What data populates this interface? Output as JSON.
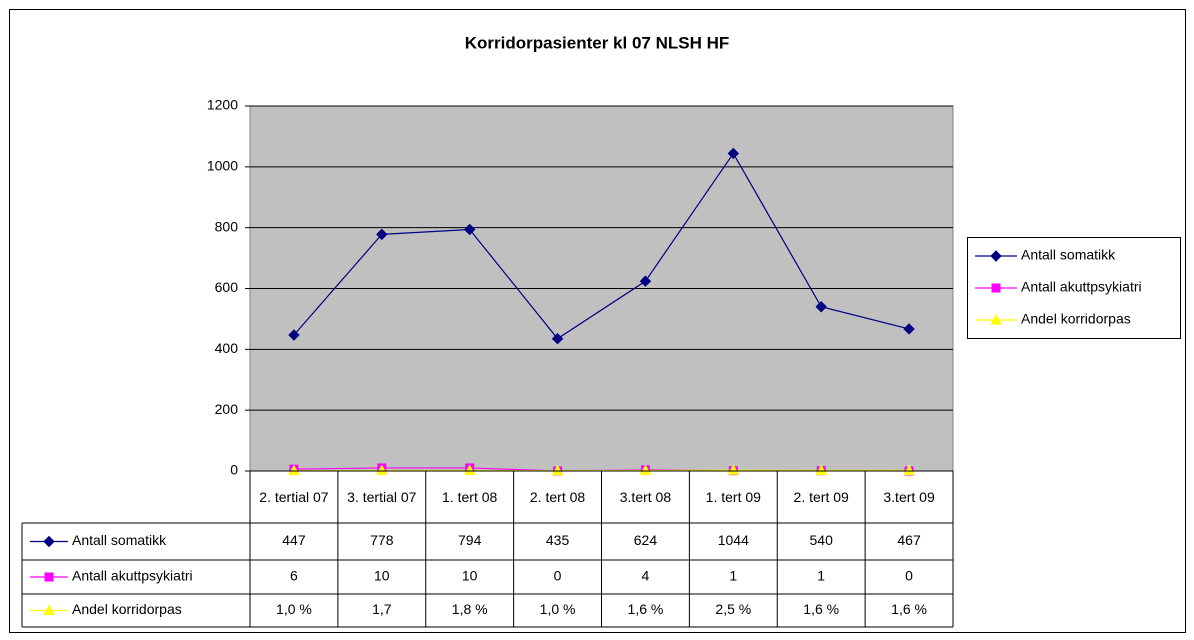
{
  "chart_data": {
    "type": "line",
    "title": "Korridorpasienter kl 07 NLSH HF",
    "categories": [
      "2. tertial 07",
      "3. tertial 07",
      "1. tert 08",
      "2. tert 08",
      "3.tert 08",
      "1. tert 09",
      "2. tert 09",
      "3.tert 09"
    ],
    "series": [
      {
        "name": "Antall somatikk",
        "color": "#000080",
        "marker": "diamond",
        "values": [
          447,
          778,
          794,
          435,
          624,
          1044,
          540,
          467
        ]
      },
      {
        "name": "Antall akuttpsykiatri",
        "color": "#ff00ff",
        "marker": "square",
        "values": [
          6,
          10,
          10,
          0,
          4,
          1,
          1,
          0
        ]
      },
      {
        "name": "Andel korridorpas",
        "color": "#ffff00",
        "marker": "triangle",
        "values": [
          1.0,
          1.7,
          1.8,
          1.0,
          1.6,
          2.5,
          1.6,
          1.6
        ],
        "value_labels": [
          "1,0 %",
          "1,7",
          "1,8 %",
          "1,0 %",
          "1,6 %",
          "2,5 %",
          "1,6 %",
          "1,6 %"
        ]
      }
    ],
    "ylim": [
      0,
      1200
    ],
    "yticks": [
      0,
      200,
      400,
      600,
      800,
      1000,
      1200
    ],
    "grid": true,
    "legend": "right",
    "data_table": true
  }
}
